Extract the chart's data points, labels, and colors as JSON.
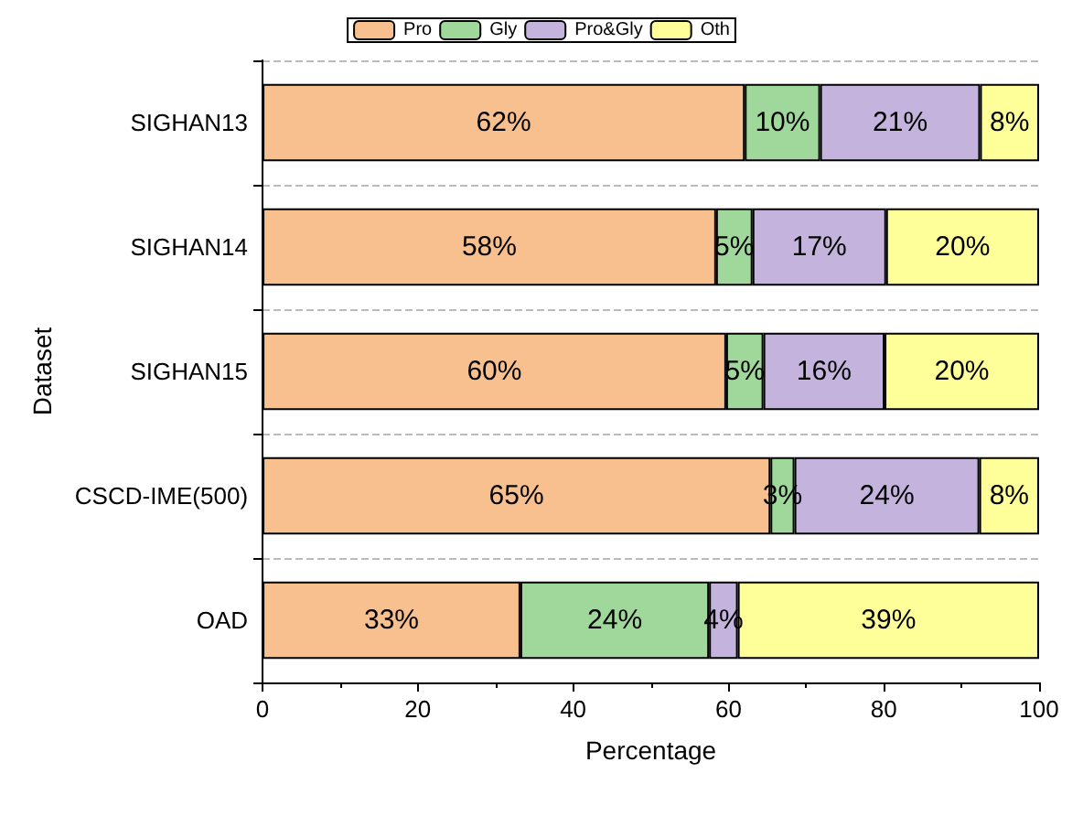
{
  "chart_data": {
    "type": "bar",
    "orientation": "horizontal",
    "stacked": true,
    "xlabel": "Percentage",
    "ylabel": "Dataset",
    "categories": [
      "SIGHAN13",
      "SIGHAN14",
      "SIGHAN15",
      "CSCD-IME(500)",
      "OAD"
    ],
    "series": [
      {
        "name": "Pro",
        "color": "#f9c08f",
        "values": [
          62.1,
          58.4,
          59.7,
          65.4,
          33.2
        ],
        "value_labels": [
          "62%",
          "58%",
          "60%",
          "65%",
          "33%"
        ]
      },
      {
        "name": "Gly",
        "color": "#9fd89a",
        "values": [
          9.7,
          4.7,
          4.8,
          3.1,
          24.3
        ],
        "value_labels": [
          "10%",
          "5%",
          "5%",
          "3%",
          "24%"
        ]
      },
      {
        "name": "Pro&Gly",
        "color": "#c3b3dd",
        "values": [
          20.6,
          17.2,
          15.6,
          23.8,
          3.7
        ],
        "value_labels": [
          "21%",
          "17%",
          "16%",
          "24%",
          "4%"
        ]
      },
      {
        "name": "Oth",
        "color": "#ffff99",
        "values": [
          7.6,
          19.7,
          19.9,
          7.7,
          38.8
        ],
        "value_labels": [
          "8%",
          "20%",
          "20%",
          "8%",
          "39%"
        ]
      }
    ],
    "xlim": [
      0,
      100
    ],
    "xticks": [
      0,
      20,
      40,
      60,
      80,
      100
    ],
    "grid": "y",
    "legend": "top"
  }
}
